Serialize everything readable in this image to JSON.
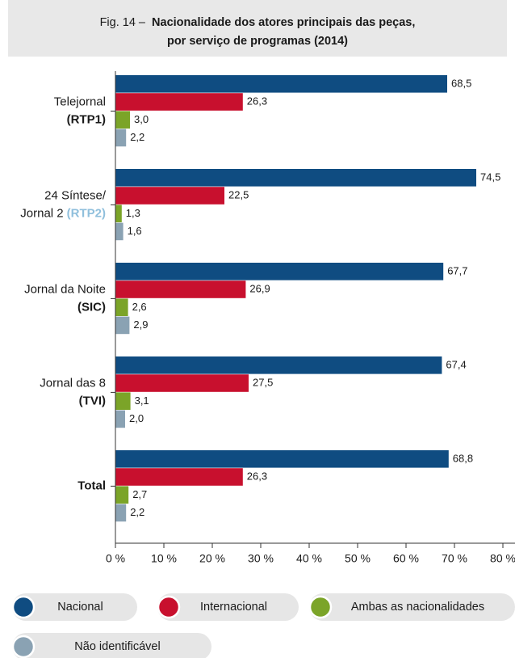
{
  "chart_data": {
    "type": "hbar",
    "figure": "Fig. 14 –",
    "title_lines": [
      "Nacionalidade dos atores principais das peças,",
      "por serviço de programas (2014)"
    ],
    "categories": [
      {
        "label": [
          "Telejornal"
        ],
        "channel": "(RTP1)",
        "channel_color": "#1b8ac2"
      },
      {
        "label": [
          "24 Síntese/",
          "Jornal 2"
        ],
        "channel": "(RTP2)",
        "channel_color": "#8fbfdc"
      },
      {
        "label": [
          "Jornal da Noite"
        ],
        "channel": "(SIC)",
        "channel_color": "#c8102e"
      },
      {
        "label": [
          "Jornal das 8"
        ],
        "channel": "(TVI)",
        "channel_color": "#f0a02a"
      },
      {
        "label": [
          "Total"
        ],
        "bold": true
      }
    ],
    "series": [
      {
        "name": "Nacional",
        "color": "#0f4c81",
        "values": [
          68.5,
          74.5,
          67.7,
          67.4,
          68.8
        ],
        "value_labels": [
          "68,5",
          "74,5",
          "67,7",
          "67,4",
          "68,8"
        ]
      },
      {
        "name": "Internacional",
        "color": "#c8102e",
        "values": [
          26.3,
          22.5,
          26.9,
          27.5,
          26.3
        ],
        "value_labels": [
          "26,3",
          "22,5",
          "26,9",
          "27,5",
          "26,3"
        ]
      },
      {
        "name": "Ambas as nacionalidades",
        "color": "#7ba428",
        "values": [
          3.0,
          1.3,
          2.6,
          3.1,
          2.7
        ],
        "value_labels": [
          "3,0",
          "1,3",
          "2,6",
          "3,1",
          "2,7"
        ]
      },
      {
        "name": "Não identificável",
        "color": "#8aa2b3",
        "values": [
          2.2,
          1.6,
          2.9,
          2.0,
          2.2
        ],
        "value_labels": [
          "2,2",
          "1,6",
          "2,9",
          "2,0",
          "2,2"
        ]
      }
    ],
    "xlim": [
      0,
      80
    ],
    "xticks": [
      {
        "value": 0,
        "label": "0 %"
      },
      {
        "value": 10,
        "label": "10 %"
      },
      {
        "value": 20,
        "label": "20 %"
      },
      {
        "value": 30,
        "label": "30 %"
      },
      {
        "value": 40,
        "label": "40 %"
      },
      {
        "value": 50,
        "label": "50 %"
      },
      {
        "value": 60,
        "label": "60 %"
      },
      {
        "value": 70,
        "label": "70 %"
      },
      {
        "value": 80,
        "label": "80 %"
      }
    ]
  }
}
